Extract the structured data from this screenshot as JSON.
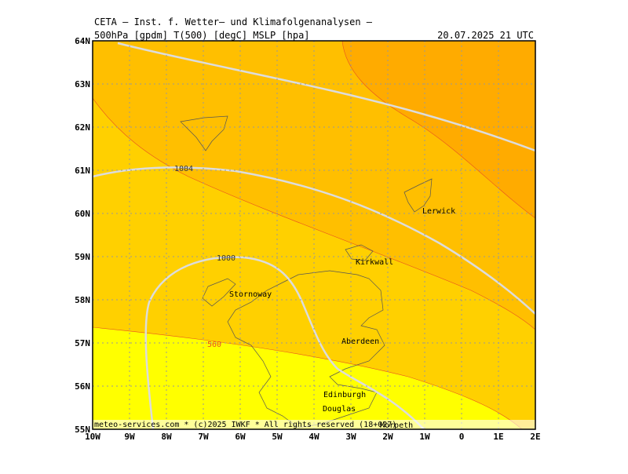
{
  "header": {
    "title": "CETA – Inst. f. Wetter– und Klimafolgenanalysen –",
    "parameters": "500hPa [gpdm] T(500) [degC] MSLP [hpa]",
    "valid_time": "20.07.2025 21 UTC"
  },
  "axes": {
    "longitude_labels": [
      "10W",
      "9W",
      "8W",
      "7W",
      "6W",
      "5W",
      "4W",
      "3W",
      "2W",
      "1W",
      "0",
      "1E",
      "2E"
    ],
    "latitude_labels": [
      "55N",
      "56N",
      "57N",
      "58N",
      "59N",
      "60N",
      "61N",
      "62N",
      "63N",
      "64N"
    ]
  },
  "places": [
    "Lerwick",
    "Kirkwall",
    "Stornoway",
    "Aberdeen",
    "Edinburgh",
    "Douglas",
    "Morpeth"
  ],
  "contour_labels": [
    "1004",
    "1000",
    "560"
  ],
  "footer": "meteo-services.com * (c)2025 IWKF * All rights reserved (18+027)"
}
